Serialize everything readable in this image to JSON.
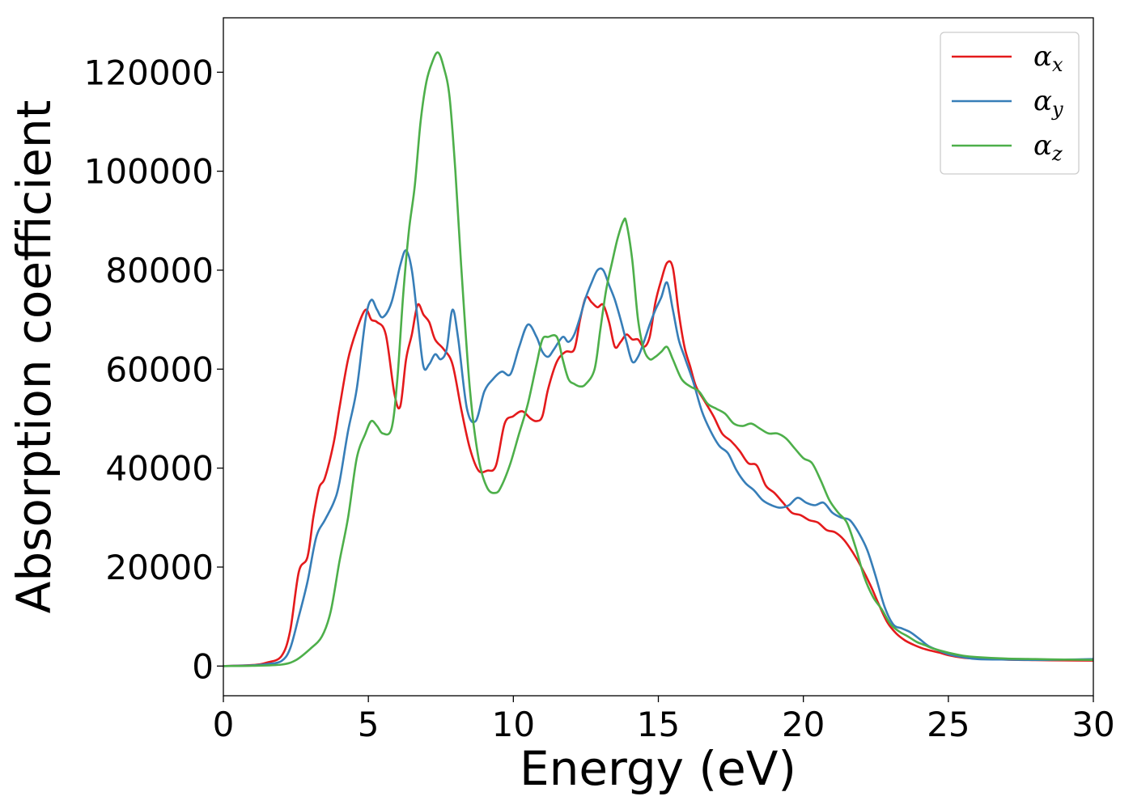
{
  "chart_data": {
    "type": "line",
    "xlabel": "Energy (eV)",
    "ylabel": "Absorption coefficient",
    "xlim": [
      0,
      30
    ],
    "ylim": [
      -6000,
      131000
    ],
    "xticks": [
      0,
      5,
      10,
      15,
      20,
      25,
      30
    ],
    "yticks": [
      0,
      20000,
      40000,
      60000,
      80000,
      100000,
      120000
    ],
    "grid": false,
    "legend_position": "top-right",
    "series": [
      {
        "name": "αx",
        "name_base": "α",
        "name_sub": "x",
        "color": "#e41a1c",
        "x": [
          0,
          1,
          1.5,
          2,
          2.3,
          2.6,
          2.9,
          3.1,
          3.3,
          3.5,
          3.8,
          4.0,
          4.3,
          4.6,
          4.9,
          5.1,
          5.3,
          5.6,
          5.9,
          6.1,
          6.3,
          6.5,
          6.7,
          6.9,
          7.1,
          7.3,
          7.6,
          7.9,
          8.2,
          8.5,
          8.8,
          9.1,
          9.4,
          9.7,
          10.0,
          10.3,
          10.6,
          10.8,
          11.0,
          11.2,
          11.5,
          11.8,
          12.1,
          12.3,
          12.5,
          12.7,
          12.9,
          13.1,
          13.3,
          13.5,
          13.7,
          13.9,
          14.1,
          14.3,
          14.5,
          14.7,
          14.9,
          15.1,
          15.3,
          15.5,
          15.7,
          15.9,
          16.1,
          16.3,
          16.6,
          16.9,
          17.2,
          17.5,
          17.8,
          18.1,
          18.4,
          18.7,
          19.0,
          19.3,
          19.6,
          19.9,
          20.2,
          20.5,
          20.8,
          21.1,
          21.4,
          21.7,
          22.0,
          22.3,
          22.6,
          22.9,
          23.2,
          23.5,
          23.8,
          24.1,
          24.4,
          24.7,
          25.0,
          25.5,
          26,
          27,
          28,
          29,
          30
        ],
        "y": [
          0,
          200,
          700,
          2000,
          7000,
          19000,
          22000,
          30000,
          36000,
          38000,
          45000,
          52000,
          62000,
          68000,
          72000,
          70000,
          69500,
          67000,
          55000,
          52500,
          62000,
          67000,
          73000,
          71000,
          69500,
          66000,
          64000,
          61000,
          52000,
          44000,
          39500,
          39500,
          40500,
          49000,
          50500,
          51500,
          50000,
          49500,
          50500,
          56000,
          61500,
          63500,
          64000,
          70000,
          74500,
          73500,
          72500,
          73000,
          69500,
          64500,
          65500,
          67000,
          66000,
          66000,
          64500,
          66500,
          73500,
          78000,
          81500,
          80500,
          71500,
          64500,
          60500,
          56500,
          53500,
          50500,
          47000,
          45500,
          43500,
          41000,
          40500,
          36500,
          35000,
          33000,
          31000,
          30500,
          29500,
          29000,
          27500,
          27000,
          25500,
          23000,
          20000,
          16500,
          12500,
          8800,
          6600,
          5200,
          4300,
          3600,
          3100,
          2700,
          2200,
          1700,
          1500,
          1300,
          1200,
          1150,
          1100
        ]
      },
      {
        "name": "αy",
        "name_base": "α",
        "name_sub": "y",
        "color": "#377eb8",
        "x": [
          0,
          1,
          1.5,
          2,
          2.3,
          2.6,
          2.9,
          3.2,
          3.5,
          3.8,
          4.0,
          4.3,
          4.6,
          4.9,
          5.1,
          5.3,
          5.5,
          5.8,
          6.1,
          6.3,
          6.5,
          6.7,
          6.9,
          7.1,
          7.3,
          7.5,
          7.7,
          7.9,
          8.1,
          8.4,
          8.7,
          9.0,
          9.3,
          9.6,
          9.9,
          10.2,
          10.5,
          10.8,
          11.0,
          11.2,
          11.4,
          11.7,
          11.9,
          12.1,
          12.3,
          12.5,
          12.7,
          12.9,
          13.1,
          13.3,
          13.5,
          13.7,
          13.9,
          14.1,
          14.3,
          14.5,
          14.7,
          14.9,
          15.1,
          15.3,
          15.5,
          15.7,
          15.9,
          16.2,
          16.5,
          16.8,
          17.1,
          17.4,
          17.7,
          18.0,
          18.3,
          18.6,
          18.9,
          19.2,
          19.5,
          19.8,
          20.1,
          20.4,
          20.7,
          21.0,
          21.3,
          21.6,
          21.9,
          22.2,
          22.5,
          22.8,
          23.1,
          23.4,
          23.7,
          24.0,
          24.3,
          24.6,
          25.0,
          25.5,
          26,
          27,
          28,
          29,
          30
        ],
        "y": [
          0,
          150,
          400,
          1000,
          3500,
          10000,
          17000,
          26000,
          29500,
          33000,
          37000,
          47500,
          56000,
          70000,
          74000,
          72000,
          70500,
          73500,
          81000,
          84000,
          80000,
          70000,
          60500,
          61000,
          63000,
          62000,
          64000,
          72000,
          66000,
          52000,
          49500,
          55500,
          58000,
          59500,
          59000,
          64500,
          69000,
          66500,
          63500,
          62500,
          64000,
          66500,
          65500,
          67000,
          70500,
          74500,
          77500,
          80000,
          80000,
          77000,
          74000,
          70000,
          65500,
          61500,
          62500,
          65500,
          69000,
          72000,
          74500,
          77500,
          72000,
          66000,
          62500,
          57500,
          51500,
          47500,
          44500,
          43000,
          39500,
          37000,
          35500,
          33500,
          32500,
          32000,
          32500,
          34000,
          33000,
          32500,
          33000,
          31000,
          30000,
          29500,
          27000,
          23500,
          18000,
          12000,
          8400,
          7600,
          6800,
          5500,
          4100,
          3300,
          2400,
          1800,
          1400,
          1300,
          1250,
          1300,
          1400
        ]
      },
      {
        "name": "αz",
        "name_base": "α",
        "name_sub": "z",
        "color": "#4daf4a",
        "x": [
          0,
          1,
          2,
          2.5,
          3.0,
          3.4,
          3.7,
          4.0,
          4.3,
          4.6,
          4.9,
          5.1,
          5.3,
          5.5,
          5.8,
          6.0,
          6.2,
          6.4,
          6.6,
          6.8,
          7.0,
          7.2,
          7.4,
          7.6,
          7.8,
          8.0,
          8.2,
          8.5,
          8.8,
          9.1,
          9.4,
          9.6,
          9.9,
          10.2,
          10.5,
          10.8,
          11.0,
          11.2,
          11.5,
          11.7,
          11.9,
          12.1,
          12.3,
          12.5,
          12.8,
          13.0,
          13.2,
          13.4,
          13.6,
          13.8,
          13.9,
          14.1,
          14.3,
          14.5,
          14.7,
          14.9,
          15.1,
          15.3,
          15.5,
          15.8,
          16.1,
          16.4,
          16.7,
          17.0,
          17.3,
          17.6,
          17.9,
          18.2,
          18.5,
          18.8,
          19.1,
          19.4,
          19.7,
          20.0,
          20.3,
          20.6,
          20.9,
          21.2,
          21.5,
          21.8,
          22.1,
          22.4,
          22.7,
          23.0,
          23.3,
          23.6,
          23.9,
          24.2,
          24.5,
          25.0,
          25.5,
          26,
          27,
          28,
          29,
          30
        ],
        "y": [
          0,
          50,
          300,
          1200,
          3500,
          6000,
          11000,
          21000,
          30000,
          42000,
          47000,
          49500,
          48500,
          47000,
          48000,
          58000,
          75000,
          88000,
          97000,
          110000,
          118000,
          122000,
          124000,
          121000,
          115000,
          100000,
          81000,
          56000,
          42000,
          36000,
          35000,
          36500,
          41000,
          47000,
          53000,
          61000,
          66000,
          66500,
          66500,
          62000,
          58000,
          57000,
          56500,
          57000,
          60000,
          68000,
          76000,
          81500,
          86500,
          90000,
          89500,
          82000,
          70000,
          64000,
          62000,
          62500,
          63500,
          64500,
          62000,
          58000,
          56500,
          55500,
          53000,
          52000,
          51000,
          49000,
          48500,
          49000,
          48000,
          47000,
          47000,
          46000,
          44000,
          42000,
          41000,
          37500,
          33500,
          31000,
          29000,
          24000,
          18000,
          14000,
          11500,
          8500,
          7000,
          6000,
          4900,
          4200,
          3500,
          2700,
          2100,
          1800,
          1500,
          1400,
          1300,
          1250
        ]
      }
    ]
  }
}
